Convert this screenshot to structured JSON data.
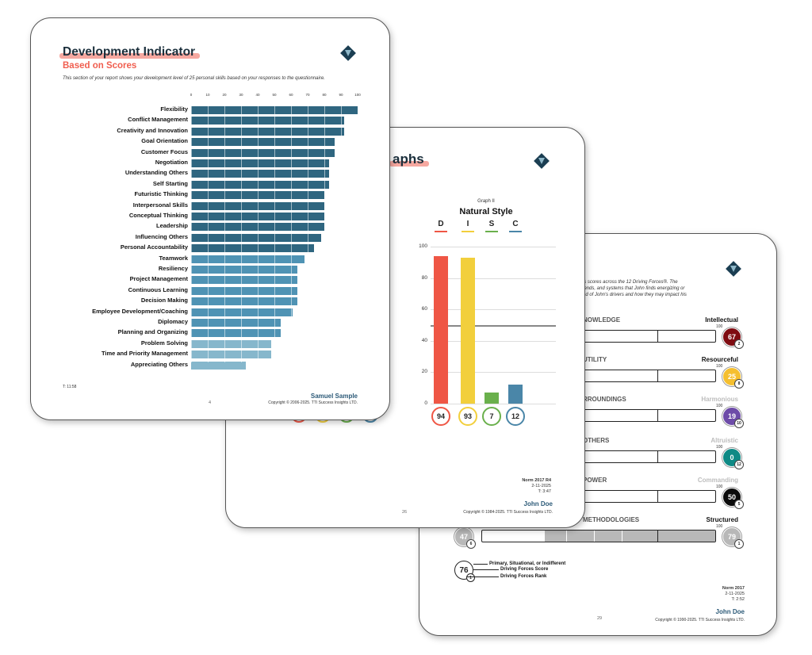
{
  "page3": {
    "title": "aph",
    "intro": "'s scores across the 12 Driving Forces®. The\nlends, and systems that John finds energizing or\nnd of John's drivers and how they may impact his",
    "scale_max_label": "100",
    "rows": [
      {
        "left": "NOWLEDGE",
        "right": "Intellectual",
        "right_faded": false,
        "fill_pct": 44,
        "color": "#7f0c12",
        "score": "67",
        "rank": "2",
        "badge_color": "#7f0c12"
      },
      {
        "left": "UTILITY",
        "right": "Resourceful",
        "right_faded": false,
        "fill_pct": 26,
        "color": "#f5bf2f",
        "score": "25",
        "rank": "8",
        "badge_color": "#f5bf2f"
      },
      {
        "left": "RROUNDINGS",
        "right": "Harmonious",
        "right_faded": true,
        "fill_pct": 17,
        "color": "#6d4ba8",
        "score": "19",
        "rank": "10",
        "badge_color": "#6d4ba8"
      },
      {
        "left": "OTHERS",
        "right": "Altruistic",
        "right_faded": true,
        "fill_pct": 6,
        "color": "#0f8a85",
        "score": "0",
        "rank": "12",
        "badge_color": "#0f8a85"
      },
      {
        "left": "POWER",
        "right": "Commanding",
        "right_faded": true,
        "fill_pct": 32,
        "color": "#0b0b0b",
        "score": "50",
        "rank": "5",
        "badge_color": "#0b0b0b"
      },
      {
        "left": "METHODOLOGIES",
        "right": "Structured",
        "right_faded": false,
        "fill_pct": 100,
        "fill_start_pct": 27,
        "color": "#b8b8b8",
        "score": "79",
        "rank": "1",
        "badge_color": "#b8b8b8",
        "left_score": "47",
        "left_rank": "6"
      }
    ],
    "legend": {
      "score": "76",
      "rank": "1",
      "line1": "Primary, Situational, or Indifferent",
      "line2": "Driving Forces Score",
      "line3": "Driving Forces Rank"
    },
    "norm": "Norm 2017",
    "date": "2-11-2025",
    "time": "T: 2:52",
    "name": "John Doe",
    "page_number": "29",
    "copyright": "Copyright © 1990-2025. TTI Success Insights LTD."
  },
  "page2": {
    "title": "aphs",
    "graph_label": "Graph II",
    "graph_title": "Natural Style",
    "norm": "Norm 2017 R4",
    "date": "2-11-2025",
    "time": "T: 3:47",
    "name": "John Doe",
    "page_number": "26",
    "copyright": "Copyright © 1984-2025. TTI Success Insights LTD."
  },
  "chart_data": [
    {
      "type": "bar",
      "title": "Natural Style",
      "subtitle": "Graph II",
      "categories": [
        "D",
        "I",
        "S",
        "C"
      ],
      "values": [
        94,
        93,
        7,
        12
      ],
      "colors": [
        "#ef5645",
        "#f2cf3c",
        "#6ab04c",
        "#4a86a8"
      ],
      "ylim": [
        0,
        100
      ],
      "yticks": [
        0,
        20,
        40,
        60,
        80,
        100
      ],
      "grid": true
    },
    {
      "type": "bar",
      "orientation": "horizontal",
      "title": "Development Indicator",
      "subtitle": "Based on Scores",
      "xlim": [
        0,
        100
      ],
      "xticks": [
        0,
        10,
        20,
        30,
        40,
        50,
        60,
        70,
        80,
        90,
        100
      ],
      "categories": [
        "Flexibility",
        "Conflict Management",
        "Creativity and Innovation",
        "Goal Orientation",
        "Customer Focus",
        "Negotiation",
        "Understanding Others",
        "Self Starting",
        "Futuristic Thinking",
        "Interpersonal Skills",
        "Conceptual Thinking",
        "Leadership",
        "Influencing Others",
        "Personal Accountability",
        "Teamwork",
        "Resiliency",
        "Project Management",
        "Continuous Learning",
        "Decision Making",
        "Employee Development/Coaching",
        "Diplomacy",
        "Planning and Organizing",
        "Problem Solving",
        "Time and Priority Management",
        "Appreciating Others"
      ],
      "values": [
        100,
        92,
        92,
        86,
        86,
        83,
        83,
        83,
        80,
        80,
        80,
        80,
        78,
        74,
        68,
        64,
        64,
        64,
        64,
        61,
        54,
        54,
        48,
        48,
        33
      ]
    }
  ],
  "page1": {
    "title": "Development Indicator",
    "subtitle": "Based on Scores",
    "intro": "This section of your report shows your development level of 25 personal skills based on your responses to the questionnaire.",
    "tcode": "T: 11:58",
    "name": "Samuel Sample",
    "page_number": "4",
    "copyright": "Copyright © 2006-2025. TTI Success Insights LTD."
  }
}
